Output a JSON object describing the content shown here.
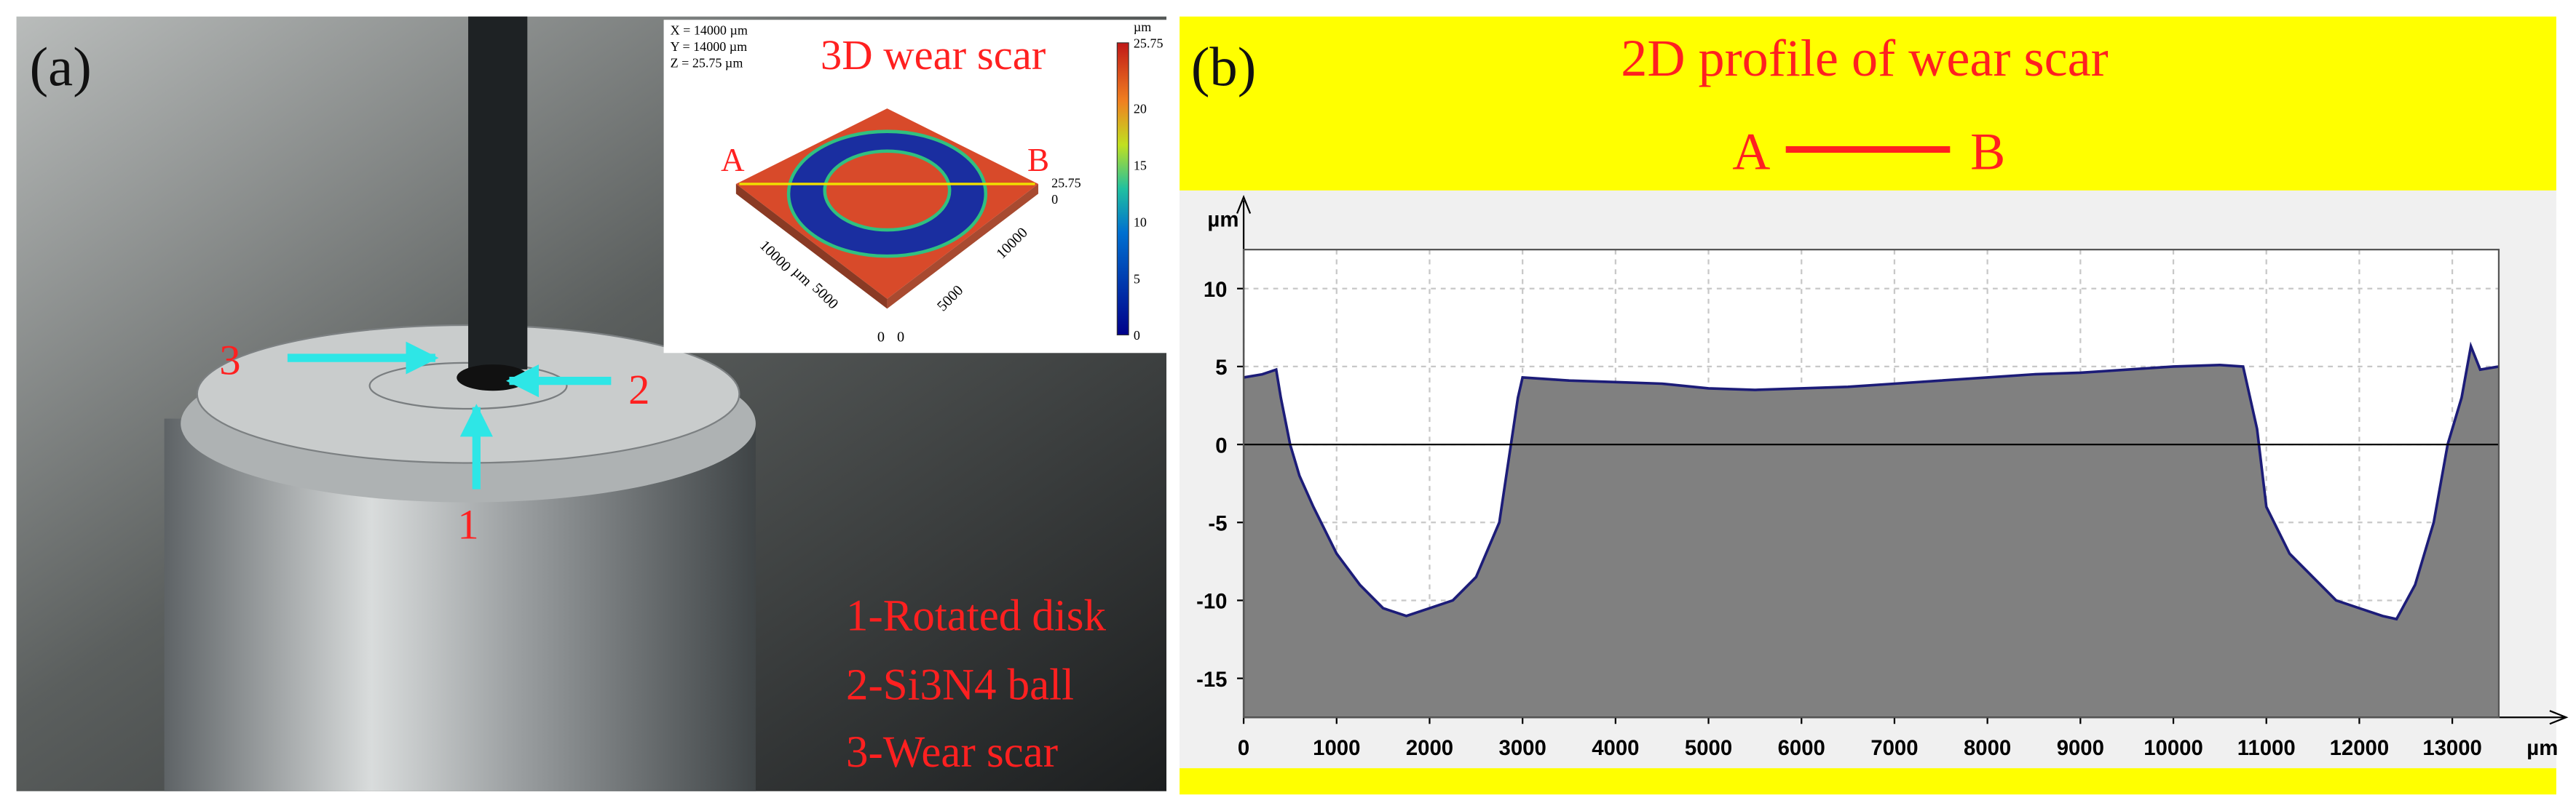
{
  "panel_a": {
    "label": "(a)",
    "inset": {
      "title": "3D wear scar",
      "info": [
        "X = 14000 µm",
        "Y = 14000 µm",
        "Z = 25.75 µm"
      ],
      "point_a": "A",
      "point_b": "B",
      "colorbar_unit": "µm",
      "colorbar_ticks": [
        0,
        5,
        10,
        15,
        20,
        25.75
      ],
      "left_axis": [
        "10000",
        "µm",
        "5000",
        "0"
      ],
      "right_axis": [
        "0",
        "5000",
        "10000"
      ],
      "z_axis": [
        "25.75",
        "0"
      ]
    },
    "arrow_labels": [
      "1",
      "2",
      "3"
    ],
    "legend": [
      "1-Rotated disk",
      "2-Si3N4 ball",
      "3-Wear scar"
    ]
  },
  "chart_data": {
    "type": "line",
    "label": "(b)",
    "title": "2D profile of wear scar",
    "section_start": "A",
    "section_end": "B",
    "y_unit": "µm",
    "x_unit": "µm",
    "xlim": [
      0,
      13500
    ],
    "xticks": [
      0,
      1000,
      2000,
      3000,
      4000,
      5000,
      6000,
      7000,
      8000,
      9000,
      10000,
      11000,
      12000,
      13000
    ],
    "ylim": [
      -17.5,
      12.5
    ],
    "yticks": [
      -15,
      -10,
      -5,
      0,
      5,
      10
    ],
    "grid": true,
    "fill_color": "#808080",
    "x": [
      0,
      200,
      350,
      400,
      500,
      600,
      750,
      1000,
      1250,
      1500,
      1750,
      2000,
      2250,
      2500,
      2750,
      2850,
      2950,
      3000,
      3500,
      4000,
      4500,
      5000,
      5500,
      6000,
      6500,
      7000,
      7500,
      8000,
      8500,
      9000,
      9500,
      10000,
      10500,
      10750,
      10900,
      11000,
      11250,
      11500,
      11750,
      12000,
      12250,
      12400,
      12600,
      12800,
      12950,
      13100,
      13200,
      13300,
      13500
    ],
    "series": [
      {
        "name": "profile",
        "color": "#1c1c78",
        "values": [
          4.3,
          4.5,
          4.8,
          3,
          0,
          -2,
          -4,
          -7,
          -9,
          -10.5,
          -11,
          -10.5,
          -10,
          -8.5,
          -5,
          -1,
          3,
          4.3,
          4.1,
          4.0,
          3.9,
          3.6,
          3.5,
          3.6,
          3.7,
          3.9,
          4.1,
          4.3,
          4.5,
          4.6,
          4.8,
          5.0,
          5.1,
          5.0,
          1,
          -4,
          -7,
          -8.5,
          -10,
          -10.5,
          -11,
          -11.2,
          -9,
          -5,
          0,
          3,
          6.3,
          4.8,
          5.0
        ]
      }
    ]
  }
}
